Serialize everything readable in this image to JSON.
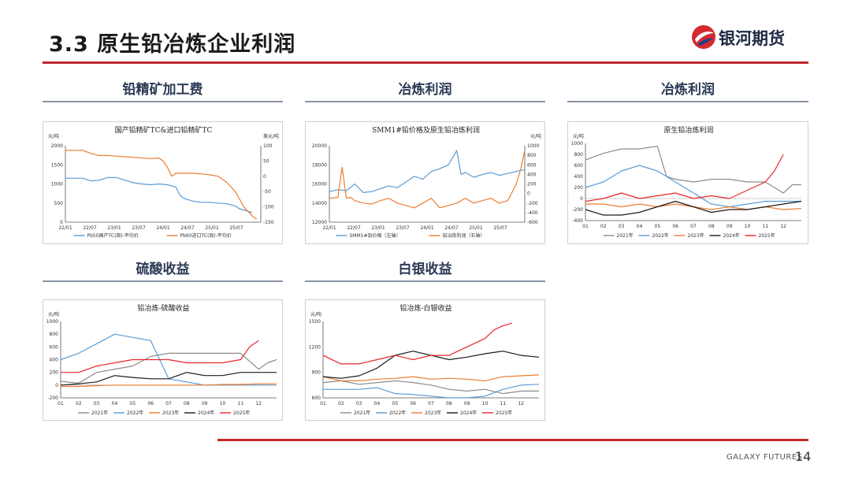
{
  "slide": {
    "title": "3.3  原生铅冶炼企业利润",
    "brand": "银河期货",
    "footer_brand": "GALAXY FUTURES",
    "page_number": "14"
  },
  "sections": {
    "s1": "铅精矿加工费",
    "s2": "冶炼利润",
    "s3": "冶炼利润",
    "s4": "硫酸收益",
    "s5": "白银收益"
  },
  "chart_data": [
    {
      "id": "tc",
      "type": "line",
      "title": "国产铅精矿TC&进口铅精矿TC",
      "ylabel_left": "元/吨",
      "ylabel_right": "美元/吨",
      "y_ticks": [
        "2000",
        "1500",
        "1000",
        "500",
        "0"
      ],
      "y2_ticks": [
        "100",
        "50",
        "0",
        "-50",
        "-100",
        "-150"
      ],
      "ylim": [
        0,
        2000
      ],
      "y2lim": [
        -150,
        100
      ],
      "x_ticks": [
        "22/01",
        "22/07",
        "23/01",
        "23/07",
        "24/01",
        "24/07",
        "25/01",
        "25/07"
      ],
      "xlim": [
        0,
        46
      ],
      "series": [
        {
          "name": "Pb50国产TC(周)-平均价",
          "color": "#5b9bd5",
          "axis": "left",
          "x": [
            0,
            4,
            6,
            8,
            10,
            12,
            14,
            16,
            18,
            20,
            22,
            24,
            26,
            27,
            28,
            30,
            32,
            34,
            36,
            38,
            40,
            41,
            42,
            44
          ],
          "values": [
            1150,
            1150,
            1080,
            1100,
            1170,
            1170,
            1100,
            1030,
            1000,
            980,
            1000,
            980,
            920,
            700,
            620,
            550,
            520,
            520,
            500,
            480,
            420,
            350,
            320,
            250
          ]
        },
        {
          "name": "Pb60进口TC(周)-平均价",
          "color": "#ed7d31",
          "axis": "right",
          "x": [
            0,
            4,
            6,
            8,
            10,
            12,
            14,
            16,
            18,
            20,
            22,
            23,
            24,
            25,
            26,
            28,
            30,
            32,
            34,
            36,
            38,
            40,
            42,
            44,
            45
          ],
          "values": [
            85,
            85,
            75,
            68,
            68,
            66,
            64,
            62,
            60,
            58,
            60,
            50,
            30,
            0,
            10,
            10,
            10,
            8,
            5,
            0,
            -20,
            -50,
            -100,
            -130,
            -140
          ]
        }
      ]
    },
    {
      "id": "smm",
      "type": "line",
      "title": "SMM1#铅价格及原生铅冶炼利润",
      "ylabel_left": "",
      "ylabel_right": "元/吨",
      "y_ticks": [
        "20000",
        "18000",
        "16000",
        "14000",
        "12000"
      ],
      "y2_ticks": [
        "1000",
        "800",
        "600",
        "400",
        "200",
        "0",
        "-200",
        "-400",
        "-600"
      ],
      "ylim": [
        12000,
        20000
      ],
      "y2lim": [
        -600,
        1000
      ],
      "x_ticks": [
        "22/01",
        "22/07",
        "23/01",
        "23/07",
        "24/01",
        "24/07",
        "25/01",
        "25/07"
      ],
      "xlim": [
        0,
        46
      ],
      "series": [
        {
          "name": "SMM1#铅价格（左轴）",
          "color": "#5b9bd5",
          "axis": "left",
          "x": [
            0,
            2,
            4,
            6,
            8,
            10,
            12,
            14,
            16,
            18,
            20,
            22,
            24,
            26,
            28,
            30,
            31,
            32,
            34,
            36,
            38,
            40,
            42,
            44,
            46
          ],
          "values": [
            15200,
            15400,
            15300,
            16000,
            15100,
            15200,
            15500,
            15800,
            15600,
            16200,
            16800,
            16500,
            17300,
            17600,
            18000,
            19500,
            17000,
            17200,
            16700,
            17000,
            17200,
            16900,
            17100,
            17300,
            17500
          ]
        },
        {
          "name": "铅冶炼利润（右轴）",
          "color": "#ed7d31",
          "axis": "right",
          "x": [
            0,
            2,
            3,
            4,
            5,
            6,
            8,
            10,
            12,
            14,
            16,
            18,
            20,
            22,
            24,
            26,
            28,
            30,
            32,
            34,
            36,
            38,
            40,
            42,
            44,
            45,
            46
          ],
          "values": [
            -100,
            -80,
            550,
            -100,
            -80,
            -150,
            -200,
            -220,
            -150,
            -100,
            -200,
            -250,
            -300,
            -200,
            -100,
            -300,
            -250,
            -200,
            -100,
            -200,
            -150,
            -100,
            -200,
            -150,
            200,
            500,
            900
          ]
        }
      ]
    },
    {
      "id": "profit",
      "type": "line",
      "title": "原生铅冶炼利润",
      "ylabel_left": "元/吨",
      "y_ticks": [
        "1000",
        "800",
        "600",
        "400",
        "200",
        "0",
        "-200",
        "-400"
      ],
      "ylim": [
        -400,
        1000
      ],
      "x_ticks": [
        "01",
        "02",
        "03",
        "04",
        "05",
        "06",
        "07",
        "08",
        "09",
        "10",
        "11",
        "12"
      ],
      "xlim": [
        1,
        13
      ],
      "series": [
        {
          "name": "2021年",
          "color": "#8c8c8c",
          "x": [
            1,
            2,
            3,
            4,
            5,
            5.5,
            6,
            7,
            8,
            9,
            10,
            11,
            12,
            12.5,
            13
          ],
          "values": [
            700,
            820,
            900,
            900,
            950,
            400,
            350,
            300,
            350,
            350,
            300,
            300,
            100,
            250,
            250
          ]
        },
        {
          "name": "2022年",
          "color": "#5b9bd5",
          "x": [
            1,
            2,
            3,
            4,
            5,
            6,
            7,
            8,
            9,
            10,
            11,
            12,
            13
          ],
          "values": [
            200,
            300,
            500,
            600,
            500,
            300,
            100,
            -100,
            -150,
            -100,
            -50,
            -50,
            -50
          ]
        },
        {
          "name": "2023年",
          "color": "#ed7d31",
          "x": [
            1,
            2,
            3,
            4,
            5,
            6,
            7,
            8,
            9,
            10,
            11,
            12,
            13
          ],
          "values": [
            -100,
            -100,
            -150,
            -100,
            -150,
            -100,
            -150,
            -200,
            -150,
            -200,
            -150,
            -200,
            -180
          ]
        },
        {
          "name": "2024年",
          "color": "#1a1a1a",
          "x": [
            1,
            2,
            3,
            4,
            5,
            6,
            7,
            8,
            9,
            10,
            11,
            12,
            13
          ],
          "values": [
            -200,
            -300,
            -300,
            -250,
            -150,
            -50,
            -150,
            -250,
            -200,
            -200,
            -150,
            -100,
            -50
          ]
        },
        {
          "name": "2025年",
          "color": "#e8262b",
          "x": [
            1,
            2,
            3,
            4,
            5,
            6,
            7,
            8,
            9,
            10,
            11,
            11.5,
            12
          ],
          "values": [
            -50,
            0,
            100,
            0,
            50,
            100,
            0,
            50,
            0,
            150,
            300,
            500,
            800
          ]
        }
      ]
    },
    {
      "id": "acid",
      "type": "line",
      "title": "铅冶炼-硫酸收益",
      "ylabel_left": "元/吨",
      "y_ticks": [
        "1000",
        "800",
        "600",
        "400",
        "200",
        "0",
        "-200"
      ],
      "ylim": [
        -200,
        1000
      ],
      "x_ticks": [
        "01",
        "02",
        "03",
        "04",
        "05",
        "06",
        "07",
        "08",
        "09",
        "10",
        "11",
        "12"
      ],
      "xlim": [
        1,
        13
      ],
      "series": [
        {
          "name": "2021年",
          "color": "#8c8c8c",
          "x": [
            1,
            2,
            3,
            4,
            5,
            6,
            7,
            8,
            9,
            10,
            11,
            12,
            12.5,
            13
          ],
          "values": [
            60,
            30,
            200,
            250,
            300,
            450,
            500,
            500,
            500,
            500,
            500,
            250,
            350,
            400
          ]
        },
        {
          "name": "2022年",
          "color": "#5b9bd5",
          "x": [
            1,
            2,
            3,
            4,
            5,
            6,
            7,
            8,
            9,
            10,
            11,
            12,
            13
          ],
          "values": [
            400,
            500,
            650,
            800,
            750,
            700,
            100,
            50,
            0,
            0,
            0,
            0,
            0
          ]
        },
        {
          "name": "2023年",
          "color": "#ed7d31",
          "x": [
            1,
            2,
            3,
            4,
            5,
            6,
            7,
            8,
            9,
            10,
            11,
            12,
            13
          ],
          "values": [
            -20,
            -20,
            -10,
            0,
            0,
            0,
            0,
            0,
            0,
            10,
            10,
            20,
            20
          ]
        },
        {
          "name": "2024年",
          "color": "#1a1a1a",
          "x": [
            1,
            2,
            3,
            4,
            5,
            6,
            7,
            8,
            9,
            10,
            11,
            12,
            13
          ],
          "values": [
            0,
            20,
            50,
            150,
            120,
            100,
            100,
            200,
            150,
            150,
            200,
            200,
            200
          ]
        },
        {
          "name": "2025年",
          "color": "#e8262b",
          "x": [
            1,
            2,
            3,
            4,
            5,
            6,
            7,
            8,
            9,
            10,
            11,
            11.5,
            12
          ],
          "values": [
            200,
            200,
            300,
            350,
            400,
            400,
            400,
            350,
            350,
            350,
            400,
            600,
            700
          ]
        }
      ]
    },
    {
      "id": "silver",
      "type": "line",
      "title": "铅冶炼-白银收益",
      "ylabel_left": "元/吨",
      "y_ticks": [
        "1500",
        "1200",
        "900",
        "600"
      ],
      "ylim": [
        600,
        1500
      ],
      "x_ticks": [
        "01",
        "02",
        "03",
        "04",
        "05",
        "06",
        "07",
        "08",
        "09",
        "10",
        "11",
        "12"
      ],
      "xlim": [
        1,
        13
      ],
      "series": [
        {
          "name": "2021年",
          "color": "#8c8c8c",
          "x": [
            1,
            2,
            3,
            4,
            5,
            6,
            7,
            8,
            9,
            10,
            11,
            12,
            13
          ],
          "values": [
            780,
            800,
            760,
            780,
            800,
            780,
            750,
            700,
            680,
            700,
            650,
            680,
            680
          ]
        },
        {
          "name": "2022年",
          "color": "#5b9bd5",
          "x": [
            1,
            2,
            3,
            4,
            5,
            6,
            7,
            8,
            9,
            10,
            11,
            12,
            13
          ],
          "values": [
            700,
            700,
            700,
            720,
            650,
            640,
            620,
            600,
            600,
            620,
            700,
            750,
            760
          ]
        },
        {
          "name": "2023年",
          "color": "#ed7d31",
          "x": [
            1,
            2,
            3,
            4,
            5,
            6,
            7,
            8,
            9,
            10,
            11,
            12,
            13
          ],
          "values": [
            850,
            800,
            800,
            820,
            830,
            850,
            820,
            830,
            820,
            800,
            850,
            860,
            870
          ]
        },
        {
          "name": "2024年",
          "color": "#1a1a1a",
          "x": [
            1,
            2,
            3,
            4,
            5,
            6,
            7,
            8,
            9,
            10,
            11,
            12,
            13
          ],
          "values": [
            850,
            830,
            860,
            950,
            1100,
            1150,
            1100,
            1050,
            1080,
            1120,
            1150,
            1100,
            1080
          ]
        },
        {
          "name": "2025年",
          "color": "#e8262b",
          "x": [
            1,
            2,
            3,
            4,
            5,
            6,
            7,
            8,
            9,
            10,
            10.5,
            11,
            11.5
          ],
          "values": [
            1100,
            1000,
            1000,
            1050,
            1100,
            1050,
            1100,
            1100,
            1200,
            1300,
            1400,
            1450,
            1480
          ]
        }
      ]
    }
  ]
}
